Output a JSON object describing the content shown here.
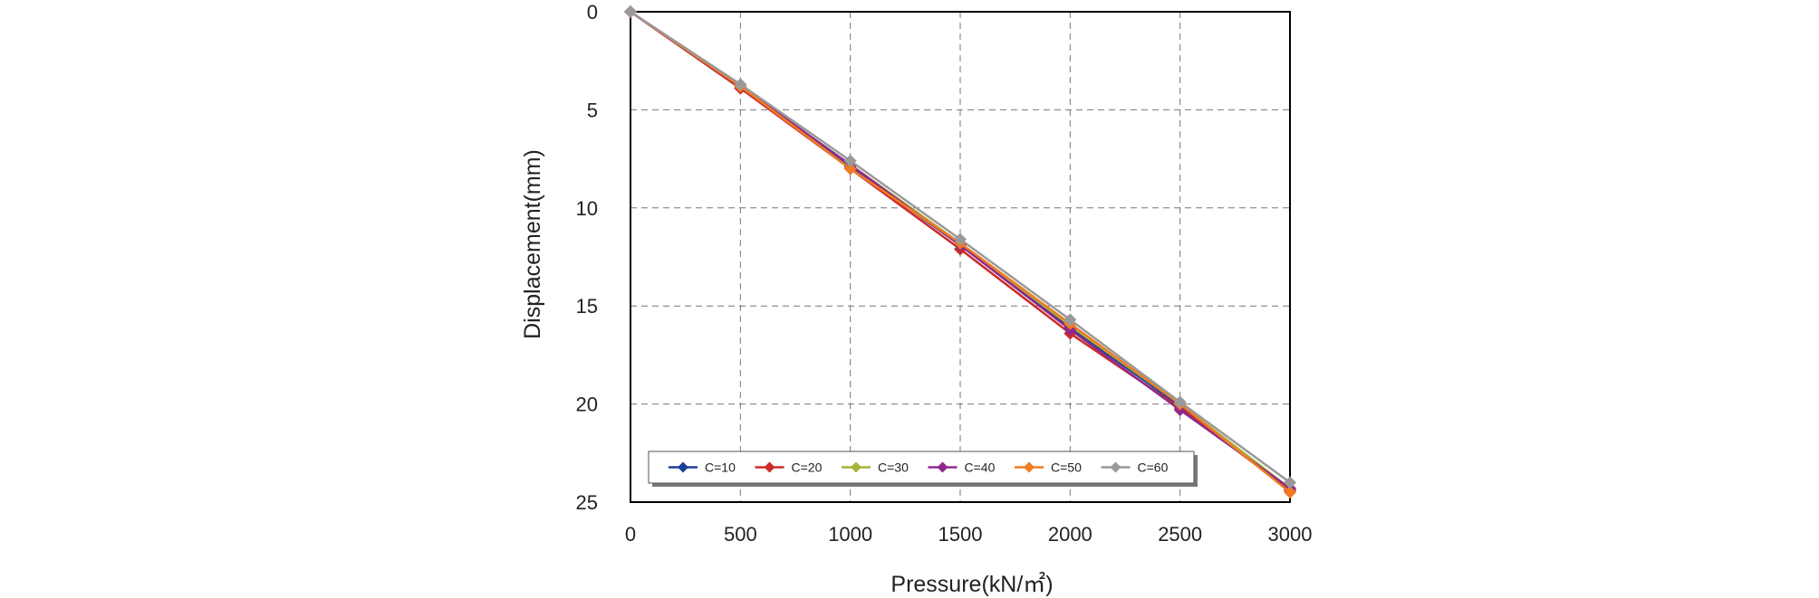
{
  "chart_data": {
    "type": "line",
    "title": "",
    "xlabel": "Pressure(kN/㎡)",
    "ylabel": "Displacement(mm)",
    "xlim": [
      0,
      3000
    ],
    "ylim": [
      0,
      25
    ],
    "y_inverted": true,
    "x_ticks": [
      "0",
      "500",
      "1000",
      "1500",
      "2000",
      "2500",
      "3000"
    ],
    "y_ticks": [
      "0",
      "5",
      "10",
      "15",
      "20",
      "25"
    ],
    "grid": true,
    "legend_position": "bottom",
    "series": [
      {
        "name": "C=10",
        "color": "#1f3f9a",
        "x": [
          0,
          500,
          1000,
          1500,
          2000,
          2500,
          3000
        ],
        "y": [
          0,
          3.9,
          7.9,
          11.9,
          16.1,
          20.1,
          24.4
        ]
      },
      {
        "name": "C=20",
        "color": "#cc2a2a",
        "x": [
          0,
          500,
          1000,
          1500,
          2000,
          2500,
          3000
        ],
        "y": [
          0,
          3.9,
          8.0,
          12.1,
          16.4,
          20.2,
          24.4
        ]
      },
      {
        "name": "C=30",
        "color": "#a7b43a",
        "x": [
          0,
          500,
          1000,
          1500,
          2000,
          2500,
          3000
        ],
        "y": [
          0,
          3.8,
          7.8,
          11.8,
          16.0,
          20.0,
          24.3
        ]
      },
      {
        "name": "C=40",
        "color": "#8e2a8e",
        "x": [
          0,
          500,
          1000,
          1500,
          2000,
          2500,
          3000
        ],
        "y": [
          0,
          3.8,
          7.8,
          11.9,
          16.2,
          20.3,
          24.3
        ]
      },
      {
        "name": "C=50",
        "color": "#f07b21",
        "x": [
          0,
          500,
          1000,
          1500,
          2000,
          2500,
          3000
        ],
        "y": [
          0,
          3.8,
          8.0,
          11.8,
          15.9,
          20.0,
          24.5
        ]
      },
      {
        "name": "C=60",
        "color": "#999999",
        "x": [
          0,
          500,
          1000,
          1500,
          2000,
          2500,
          3000
        ],
        "y": [
          0,
          3.7,
          7.6,
          11.6,
          15.7,
          19.9,
          24.0
        ]
      }
    ]
  }
}
